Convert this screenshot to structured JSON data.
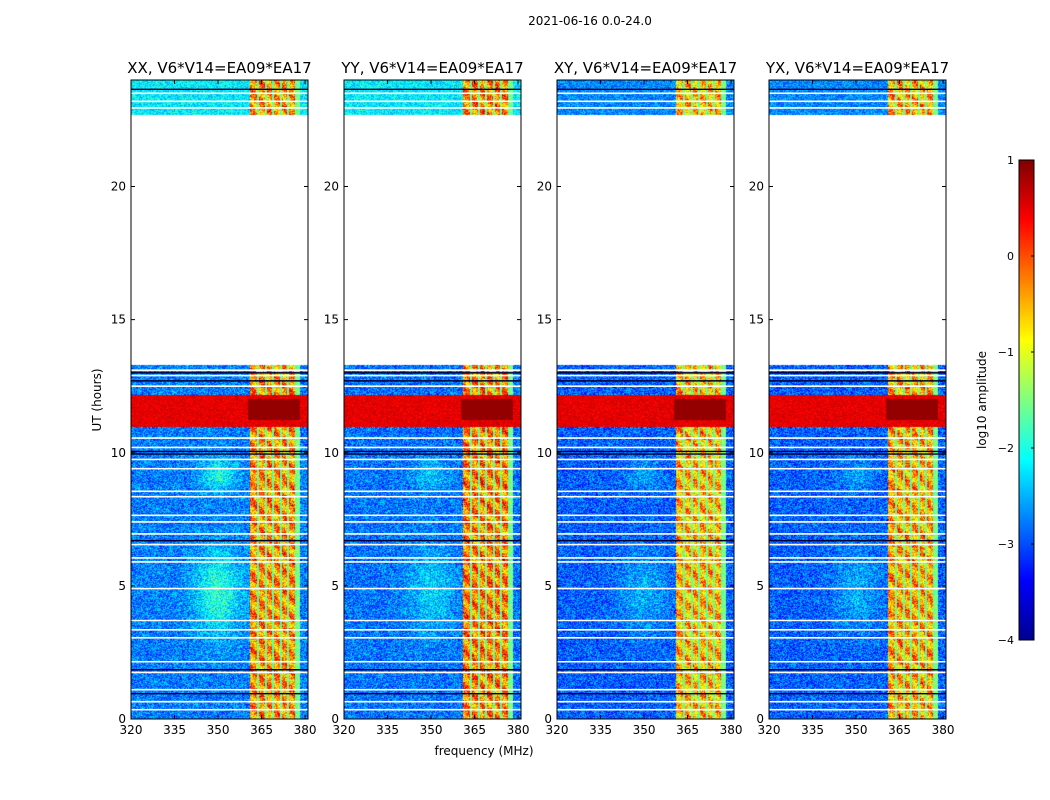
{
  "figure": {
    "suptitle": "2021-06-16 0.0-24.0"
  },
  "chart_data": {
    "type": "heatmap",
    "xlabel": "frequency (MHz)",
    "ylabel": "UT (hours)",
    "xlim": [
      320,
      381
    ],
    "ylim": [
      0,
      24
    ],
    "xticks": [
      "320",
      "335",
      "350",
      "365",
      "380"
    ],
    "yticks": [
      "0",
      "5",
      "10",
      "15",
      "20"
    ],
    "panels": [
      {
        "title": "XX, V6*V14=EA09*EA17",
        "rfi_level": 0.74,
        "base_level": 0.25,
        "blob_level": 0.42
      },
      {
        "title": "YY, V6*V14=EA09*EA17",
        "rfi_level": 0.76,
        "base_level": 0.24,
        "blob_level": 0.34
      },
      {
        "title": "XY, V6*V14=EA09*EA17",
        "rfi_level": 0.7,
        "base_level": 0.22,
        "blob_level": 0.3
      },
      {
        "title": "YX, V6*V14=EA09*EA17",
        "rfi_level": 0.72,
        "base_level": 0.22,
        "blob_level": 0.3
      }
    ],
    "data_gap_hours": [
      13.3,
      22.7
    ],
    "rfi_band_mhz": [
      361,
      378
    ],
    "strong_rfi_hours": [
      11.0,
      12.2
    ],
    "colorbar": {
      "label": "log10 amplitude",
      "range": [
        -4,
        1
      ],
      "ticks": [
        "1",
        "0",
        "−1",
        "−2",
        "−3",
        "−4"
      ]
    }
  }
}
